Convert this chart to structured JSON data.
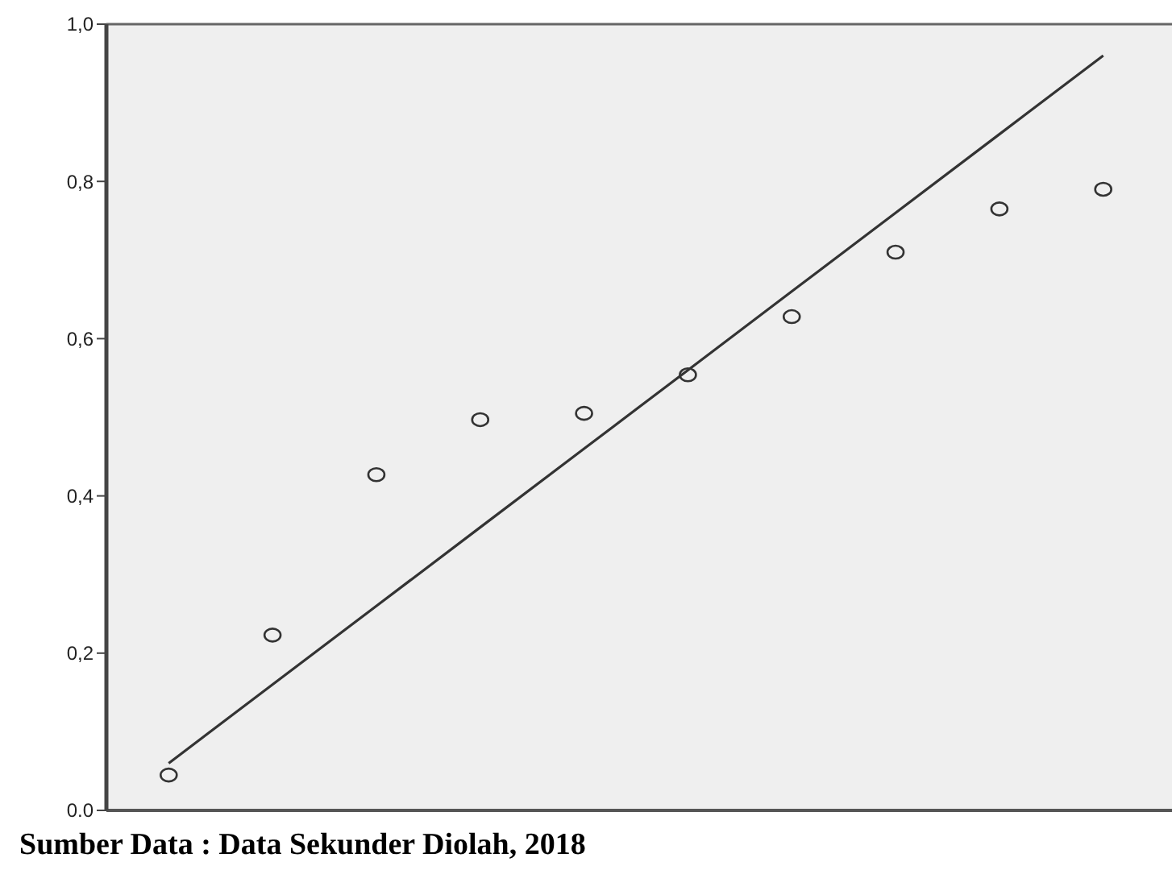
{
  "chart_data": {
    "type": "scatter",
    "categories": [
      null,
      null,
      null,
      null,
      null,
      null,
      null,
      null,
      null,
      null
    ],
    "series": [
      {
        "color": "#333333",
        "values": [
          0.045,
          0.223,
          0.427,
          0.497,
          0.505,
          0.554,
          0.628,
          0.71,
          0.765,
          0.79
        ]
      },
      {
        "type": "line",
        "color": "#333333",
        "marker": "none",
        "values": [
          0.06,
          0.16,
          0.26,
          0.36,
          0.46,
          0.56,
          0.66,
          0.76,
          0.86,
          0.96
        ]
      }
    ],
    "marker": "circle",
    "ylim": [
      0,
      1
    ],
    "yticks": [
      {
        "value": 0,
        "label": "0.0"
      },
      {
        "value": 0.2,
        "label": "0,2"
      },
      {
        "value": 0.4,
        "label": "0,4"
      },
      {
        "value": 0.6,
        "label": "0,6"
      },
      {
        "value": 0.8,
        "label": "0,8"
      },
      {
        "value": 1,
        "label": "1,0"
      }
    ],
    "tick_labels": "y",
    "grid": false,
    "annotations": [
      "Sumber Data : Data Sekunder Diolah, 2018"
    ]
  }
}
